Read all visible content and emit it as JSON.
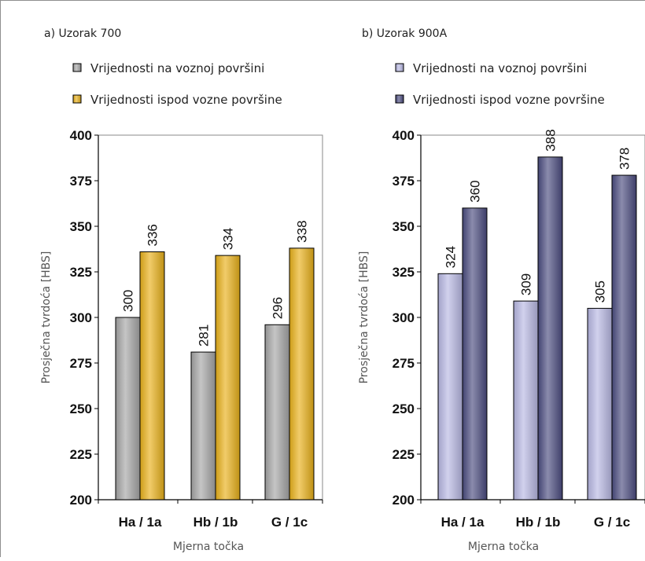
{
  "chart_data": [
    {
      "type": "bar",
      "title": "a) Uzorak 700",
      "categories": [
        "Ha / 1a",
        "Hb / 1b",
        "G / 1c"
      ],
      "series": [
        {
          "name": "Vrijednosti na voznoj površini",
          "values": [
            300,
            281,
            296
          ],
          "color": "#a6a6a6"
        },
        {
          "name": "Vrijednosti ispod vozne površine",
          "values": [
            336,
            334,
            338
          ],
          "color": "#e9b11a"
        }
      ],
      "xlabel": "Mjerna točka",
      "ylabel": "Prosječna tvrdoća [HBS]",
      "ylim": [
        200,
        400
      ],
      "yticks": [
        "400",
        "375",
        "350",
        "325",
        "300",
        "275",
        "250",
        "225",
        "200"
      ],
      "grid": false,
      "legend_position": "top"
    },
    {
      "type": "bar",
      "title": "b) Uzorak 900A",
      "categories": [
        "Ha / 1a",
        "Hb / 1b",
        "G / 1c"
      ],
      "series": [
        {
          "name": "Vrijednosti na voznoj površini",
          "values": [
            324,
            309,
            305
          ],
          "color": "#b8b8e4"
        },
        {
          "name": "Vrijednosti ispod vozne površine",
          "values": [
            360,
            388,
            378
          ],
          "color": "#4b4c80"
        }
      ],
      "xlabel": "Mjerna točka",
      "ylabel": "Prosječna tvrdoća [HBS]",
      "ylim": [
        200,
        400
      ],
      "yticks": [
        "400",
        "375",
        "350",
        "325",
        "300",
        "275",
        "250",
        "225",
        "200"
      ],
      "grid": false,
      "legend_position": "top"
    }
  ]
}
